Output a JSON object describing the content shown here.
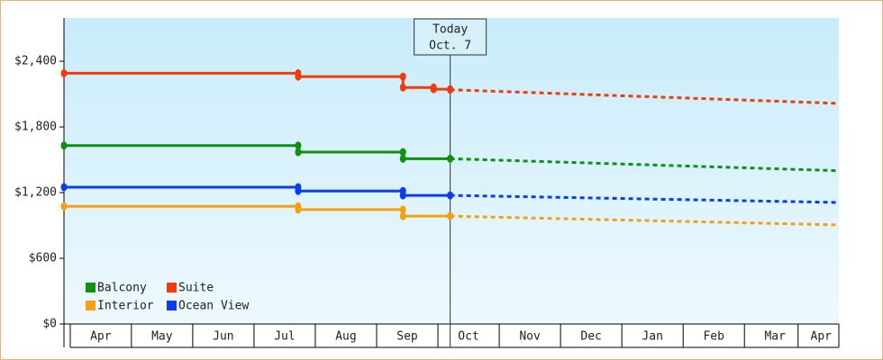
{
  "chart_data": {
    "type": "line",
    "step": true,
    "legend": "lower left",
    "x": [
      -0.1,
      3.72,
      5.43,
      5.93,
      6.2,
      12.54
    ],
    "today": {
      "x": 6.2,
      "lines": [
        "Today",
        "Oct. 7"
      ]
    },
    "xlim": [
      -0.1,
      12.54
    ],
    "xticks": [
      {
        "value": 0.5,
        "label": "Apr"
      },
      {
        "value": 1.5,
        "label": "May"
      },
      {
        "value": 2.5,
        "label": "Jun"
      },
      {
        "value": 3.5,
        "label": "Jul"
      },
      {
        "value": 4.5,
        "label": "Aug"
      },
      {
        "value": 5.5,
        "label": "Sep"
      },
      {
        "value": 6.5,
        "label": "Oct"
      },
      {
        "value": 7.5,
        "label": "Nov"
      },
      {
        "value": 8.5,
        "label": "Dec"
      },
      {
        "value": 9.5,
        "label": "Jan"
      },
      {
        "value": 10.5,
        "label": "Feb"
      },
      {
        "value": 11.5,
        "label": "Mar"
      },
      {
        "value": 12.25,
        "label": "Apr"
      }
    ],
    "ylim": [
      0,
      2795
    ],
    "yticks": [
      {
        "value": 0,
        "label": "$0"
      },
      {
        "value": 600,
        "label": "$600"
      },
      {
        "value": 1200,
        "label": "$1,200"
      },
      {
        "value": 1800,
        "label": "$1,800"
      },
      {
        "value": 2400,
        "label": "$2,400"
      }
    ],
    "series": [
      {
        "name": "Balcony",
        "color": "#109010",
        "values": [
          1630,
          1570,
          1510,
          1510,
          1510,
          1400
        ]
      },
      {
        "name": "Suite",
        "color": "#f03c0a",
        "values": [
          2290,
          2260,
          2160,
          2145,
          2140,
          2015
        ]
      },
      {
        "name": "Interior",
        "color": "#f5a010",
        "values": [
          1075,
          1045,
          985,
          985,
          985,
          905
        ]
      },
      {
        "name": "Ocean View",
        "color": "#0a3cf0",
        "values": [
          1250,
          1215,
          1175,
          1175,
          1175,
          1110
        ]
      }
    ]
  }
}
